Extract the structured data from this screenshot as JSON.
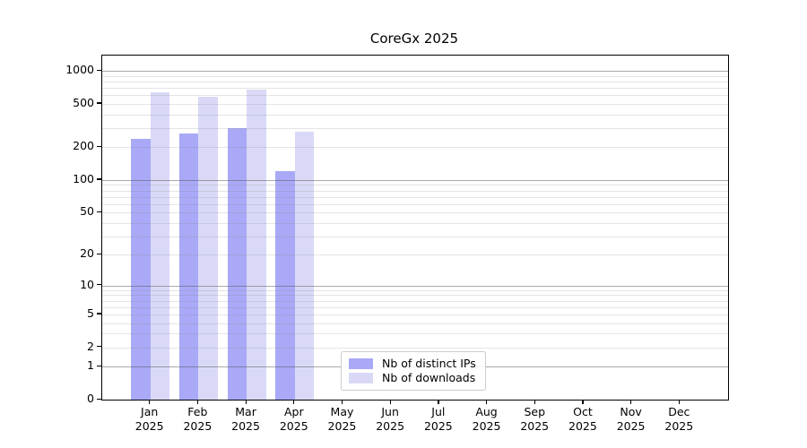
{
  "chart_data": {
    "type": "bar",
    "title": "CoreGx 2025",
    "categories": [
      "Jan",
      "Feb",
      "Mar",
      "Apr",
      "May",
      "Jun",
      "Jul",
      "Aug",
      "Sep",
      "Oct",
      "Nov",
      "Dec"
    ],
    "category_year": "2025",
    "series": [
      {
        "name": "Nb of distinct IPs",
        "color": "#a9a9f7",
        "values": [
          240,
          265,
          300,
          120,
          null,
          null,
          null,
          null,
          null,
          null,
          null,
          null
        ]
      },
      {
        "name": "Nb of downloads",
        "color": "#d9d9f7",
        "values": [
          640,
          585,
          680,
          280,
          null,
          null,
          null,
          null,
          null,
          null,
          null,
          null
        ]
      }
    ],
    "yscale": "log10(1+y)",
    "ylim": [
      0,
      1380
    ],
    "y_ticks": [
      0,
      1,
      2,
      5,
      10,
      20,
      50,
      100,
      200,
      500,
      1000
    ],
    "grid": "horizontal major+minor, drawn over bars",
    "legend_position": "lower center",
    "xlabel": "",
    "ylabel": ""
  },
  "colors": {
    "background": "#ffffff",
    "axis": "#000000",
    "major_grid": "#aaaaaa",
    "minor_grid": "#e3e3e3",
    "legend_border": "#cccccc"
  }
}
